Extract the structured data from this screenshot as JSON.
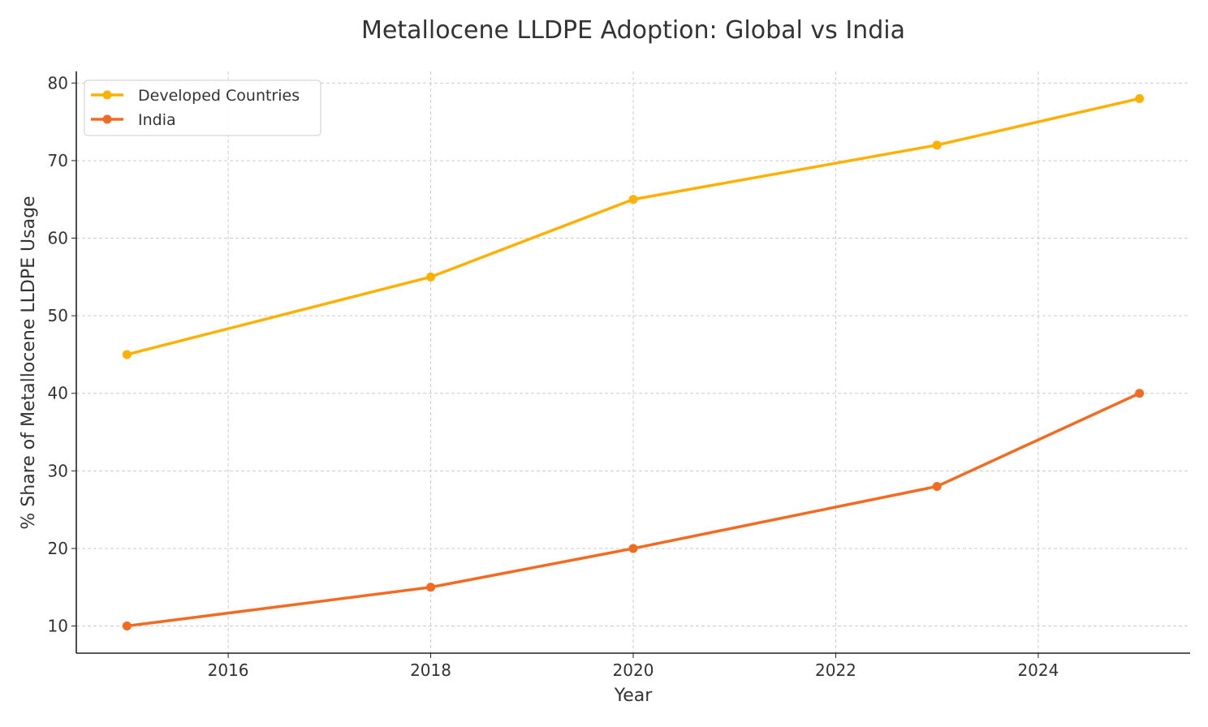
{
  "chart_data": {
    "type": "line",
    "title": "Metallocene LLDPE Adoption: Global vs India",
    "xlabel": "Year",
    "ylabel": "% Share of Metallocene LLDPE Usage",
    "xlim": [
      2014.5,
      2025.5
    ],
    "ylim": [
      6.5,
      81.5
    ],
    "xticks": [
      2016,
      2018,
      2020,
      2022,
      2024
    ],
    "yticks": [
      10,
      20,
      30,
      40,
      50,
      60,
      70,
      80
    ],
    "grid": true,
    "legend_position": "top-left",
    "x": [
      2015,
      2018,
      2020,
      2023,
      2025
    ],
    "series": [
      {
        "name": "Developed Countries",
        "values": [
          45,
          55,
          65,
          72,
          78
        ],
        "color": "#FFB000",
        "marker": "circle"
      },
      {
        "name": "India",
        "values": [
          10,
          15,
          20,
          28,
          40
        ],
        "color": "#F26B21",
        "marker": "circle"
      }
    ]
  }
}
